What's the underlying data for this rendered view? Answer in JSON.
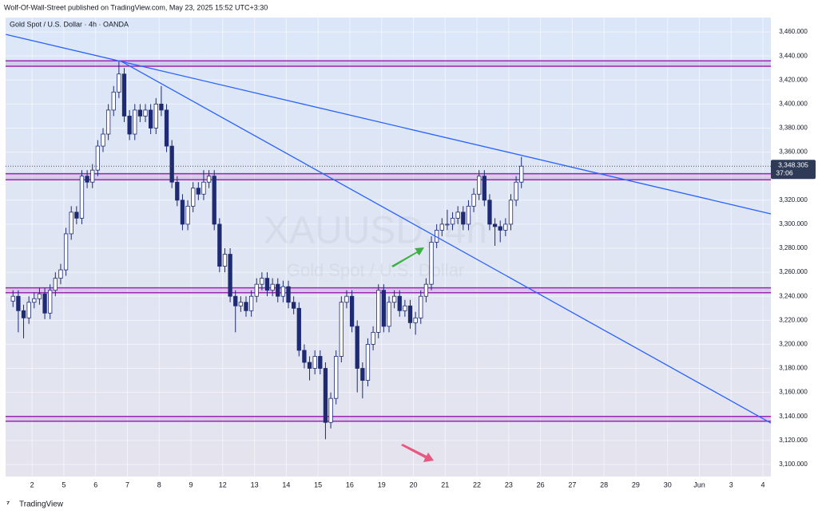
{
  "header": {
    "author_line": "Wolf-Of-Wall-Street published on TradingView.com, May 23, 2025 15:52 UTC+3:30"
  },
  "chart_data": {
    "type": "candlestick",
    "title": "Gold Spot / U.S. Dollar · 4h · OANDA",
    "watermark": "XAUUSD, 4h",
    "watermark_subtitle": "Gold Spot / U.S. Dollar",
    "x": [
      0,
      1,
      2,
      3,
      4,
      5,
      6,
      7,
      8,
      9,
      10,
      11,
      12,
      13,
      14,
      15,
      16,
      17,
      18,
      19,
      20,
      21,
      22,
      23,
      24,
      25,
      26,
      27,
      28,
      29,
      30,
      31,
      32,
      33,
      34,
      35,
      36,
      37,
      38,
      39,
      40,
      41,
      42,
      43,
      44,
      45,
      46,
      47,
      48,
      49,
      50,
      51,
      52,
      53,
      54,
      55,
      56,
      57,
      58,
      59,
      60,
      61,
      62,
      63,
      64,
      65,
      66,
      67,
      68,
      69,
      70,
      71,
      72,
      73,
      74,
      75,
      76,
      77,
      78,
      79,
      80,
      81,
      82,
      83,
      84,
      85,
      86,
      87,
      88,
      89,
      90,
      91,
      92,
      93,
      94,
      95,
      96
    ],
    "open": [
      3236,
      3240,
      3228,
      3222,
      3235,
      3238,
      3242,
      3226,
      3245,
      3255,
      3262,
      3292,
      3310,
      3305,
      3340,
      3335,
      3345,
      3365,
      3375,
      3395,
      3410,
      3425,
      3390,
      3375,
      3395,
      3390,
      3395,
      3380,
      3400,
      3395,
      3365,
      3335,
      3320,
      3300,
      3315,
      3330,
      3325,
      3335,
      3340,
      3300,
      3265,
      3275,
      3240,
      3232,
      3235,
      3228,
      3240,
      3250,
      3255,
      3245,
      3250,
      3240,
      3248,
      3235,
      3230,
      3195,
      3185,
      3180,
      3190,
      3180,
      3135,
      3155,
      3190,
      3235,
      3240,
      3215,
      3180,
      3170,
      3200,
      3210,
      3245,
      3215,
      3235,
      3240,
      3228,
      3232,
      3218,
      3222,
      3240,
      3250,
      3285,
      3295,
      3300,
      3300,
      3305,
      3310,
      3300,
      3315,
      3325,
      3340,
      3320,
      3300,
      3298,
      3295,
      3300,
      3320,
      3335
    ],
    "high": [
      3245,
      3245,
      3233,
      3240,
      3243,
      3247,
      3247,
      3250,
      3260,
      3267,
      3297,
      3315,
      3315,
      3345,
      3345,
      3350,
      3370,
      3380,
      3400,
      3415,
      3436,
      3430,
      3395,
      3400,
      3400,
      3400,
      3400,
      3405,
      3415,
      3400,
      3370,
      3340,
      3325,
      3320,
      3335,
      3335,
      3345,
      3345,
      3345,
      3305,
      3280,
      3280,
      3245,
      3240,
      3240,
      3245,
      3255,
      3260,
      3260,
      3255,
      3255,
      3253,
      3253,
      3240,
      3235,
      3200,
      3190,
      3195,
      3195,
      3185,
      3160,
      3195,
      3240,
      3245,
      3245,
      3220,
      3185,
      3205,
      3215,
      3250,
      3250,
      3240,
      3245,
      3245,
      3237,
      3237,
      3227,
      3245,
      3255,
      3290,
      3300,
      3305,
      3312,
      3310,
      3315,
      3315,
      3320,
      3330,
      3345,
      3345,
      3325,
      3305,
      3303,
      3305,
      3325,
      3340,
      3356
    ],
    "low": [
      3231,
      3210,
      3205,
      3217,
      3230,
      3233,
      3221,
      3221,
      3240,
      3250,
      3257,
      3287,
      3300,
      3300,
      3330,
      3330,
      3340,
      3360,
      3370,
      3390,
      3405,
      3385,
      3370,
      3370,
      3385,
      3385,
      3375,
      3375,
      3390,
      3360,
      3330,
      3315,
      3295,
      3295,
      3310,
      3320,
      3320,
      3330,
      3295,
      3260,
      3260,
      3235,
      3210,
      3227,
      3223,
      3223,
      3235,
      3245,
      3240,
      3240,
      3235,
      3235,
      3230,
      3225,
      3190,
      3180,
      3170,
      3175,
      3175,
      3121,
      3130,
      3150,
      3185,
      3230,
      3210,
      3160,
      3155,
      3165,
      3195,
      3205,
      3210,
      3210,
      3230,
      3223,
      3223,
      3213,
      3208,
      3217,
      3235,
      3245,
      3280,
      3290,
      3295,
      3295,
      3300,
      3295,
      3295,
      3310,
      3320,
      3315,
      3295,
      3282,
      3285,
      3290,
      3295,
      3315,
      3330
    ],
    "close": [
      3240,
      3228,
      3222,
      3235,
      3238,
      3242,
      3226,
      3245,
      3255,
      3262,
      3292,
      3310,
      3305,
      3340,
      3335,
      3345,
      3365,
      3375,
      3395,
      3410,
      3425,
      3390,
      3375,
      3395,
      3390,
      3395,
      3380,
      3400,
      3395,
      3365,
      3335,
      3320,
      3300,
      3315,
      3330,
      3325,
      3335,
      3340,
      3300,
      3265,
      3275,
      3240,
      3232,
      3235,
      3228,
      3240,
      3250,
      3255,
      3245,
      3250,
      3240,
      3248,
      3235,
      3230,
      3195,
      3185,
      3180,
      3190,
      3180,
      3135,
      3155,
      3190,
      3235,
      3240,
      3215,
      3180,
      3170,
      3200,
      3210,
      3245,
      3215,
      3235,
      3240,
      3228,
      3232,
      3218,
      3222,
      3240,
      3250,
      3285,
      3295,
      3300,
      3300,
      3305,
      3310,
      3300,
      3315,
      3325,
      3340,
      3320,
      3300,
      3298,
      3295,
      3300,
      3320,
      3335,
      3348.305
    ],
    "up_color": "#ffffff",
    "down_color": "#1e2b72",
    "wick_color": "#1e2b72",
    "xlim": [
      -1.4,
      143.1
    ],
    "xticks": [
      {
        "value": 3.6,
        "label": "2"
      },
      {
        "value": 9.6,
        "label": "5"
      },
      {
        "value": 15.6,
        "label": "6"
      },
      {
        "value": 21.6,
        "label": "7"
      },
      {
        "value": 27.6,
        "label": "8"
      },
      {
        "value": 33.6,
        "label": "9"
      },
      {
        "value": 39.6,
        "label": "12"
      },
      {
        "value": 45.6,
        "label": "13"
      },
      {
        "value": 51.6,
        "label": "14"
      },
      {
        "value": 57.6,
        "label": "15"
      },
      {
        "value": 63.6,
        "label": "16"
      },
      {
        "value": 69.6,
        "label": "19"
      },
      {
        "value": 75.6,
        "label": "20"
      },
      {
        "value": 81.6,
        "label": "21"
      },
      {
        "value": 87.6,
        "label": "22"
      },
      {
        "value": 93.6,
        "label": "23"
      },
      {
        "value": 99.6,
        "label": "26"
      },
      {
        "value": 105.6,
        "label": "27"
      },
      {
        "value": 111.6,
        "label": "28"
      },
      {
        "value": 117.6,
        "label": "29"
      },
      {
        "value": 123.6,
        "label": "30"
      },
      {
        "value": 129.6,
        "label": "Jun"
      },
      {
        "value": 135.6,
        "label": "3"
      },
      {
        "value": 141.6,
        "label": "4"
      }
    ],
    "ylim": [
      3090,
      3472
    ],
    "yticks": [
      {
        "value": 3100,
        "label": "3,100.000"
      },
      {
        "value": 3120,
        "label": "3,120.000"
      },
      {
        "value": 3140,
        "label": "3,140.000"
      },
      {
        "value": 3160,
        "label": "3,160.000"
      },
      {
        "value": 3180,
        "label": "3,180.000"
      },
      {
        "value": 3200,
        "label": "3,200.000"
      },
      {
        "value": 3220,
        "label": "3,220.000"
      },
      {
        "value": 3240,
        "label": "3,240.000"
      },
      {
        "value": 3260,
        "label": "3,260.000"
      },
      {
        "value": 3280,
        "label": "3,280.000"
      },
      {
        "value": 3300,
        "label": "3,300.000"
      },
      {
        "value": 3320,
        "label": "3,320.000"
      },
      {
        "value": 3340,
        "label": "3,340.000"
      },
      {
        "value": 3360,
        "label": "3,360.000"
      },
      {
        "value": 3380,
        "label": "3,380.000"
      },
      {
        "value": 3400,
        "label": "3,400.000"
      },
      {
        "value": 3420,
        "label": "3,420.000"
      },
      {
        "value": 3440,
        "label": "3,440.000"
      },
      {
        "value": 3460,
        "label": "3,460.000"
      }
    ],
    "grid": true,
    "zones": [
      {
        "low": 3431.5,
        "high": 3436,
        "color": "#9c27b0"
      },
      {
        "low": 3337,
        "high": 3342,
        "color": "#9c27b0"
      },
      {
        "low": 3243,
        "high": 3247,
        "color": "#9c27b0"
      },
      {
        "low": 3136,
        "high": 3140,
        "color": "#9c27b0"
      }
    ],
    "trendlines": [
      {
        "x": [
          -1.36,
          143.1
        ],
        "y": [
          3458,
          3308.6
        ],
        "color": "#2962ff"
      },
      {
        "x": [
          20.5,
          143.1
        ],
        "y": [
          3435.4,
          3134.5
        ],
        "color": "#2962ff"
      }
    ],
    "last_price": {
      "value": 3348.305,
      "label": "3,348.305"
    },
    "countdown": "37:06"
  },
  "footer": {
    "brand": "TradingView"
  }
}
